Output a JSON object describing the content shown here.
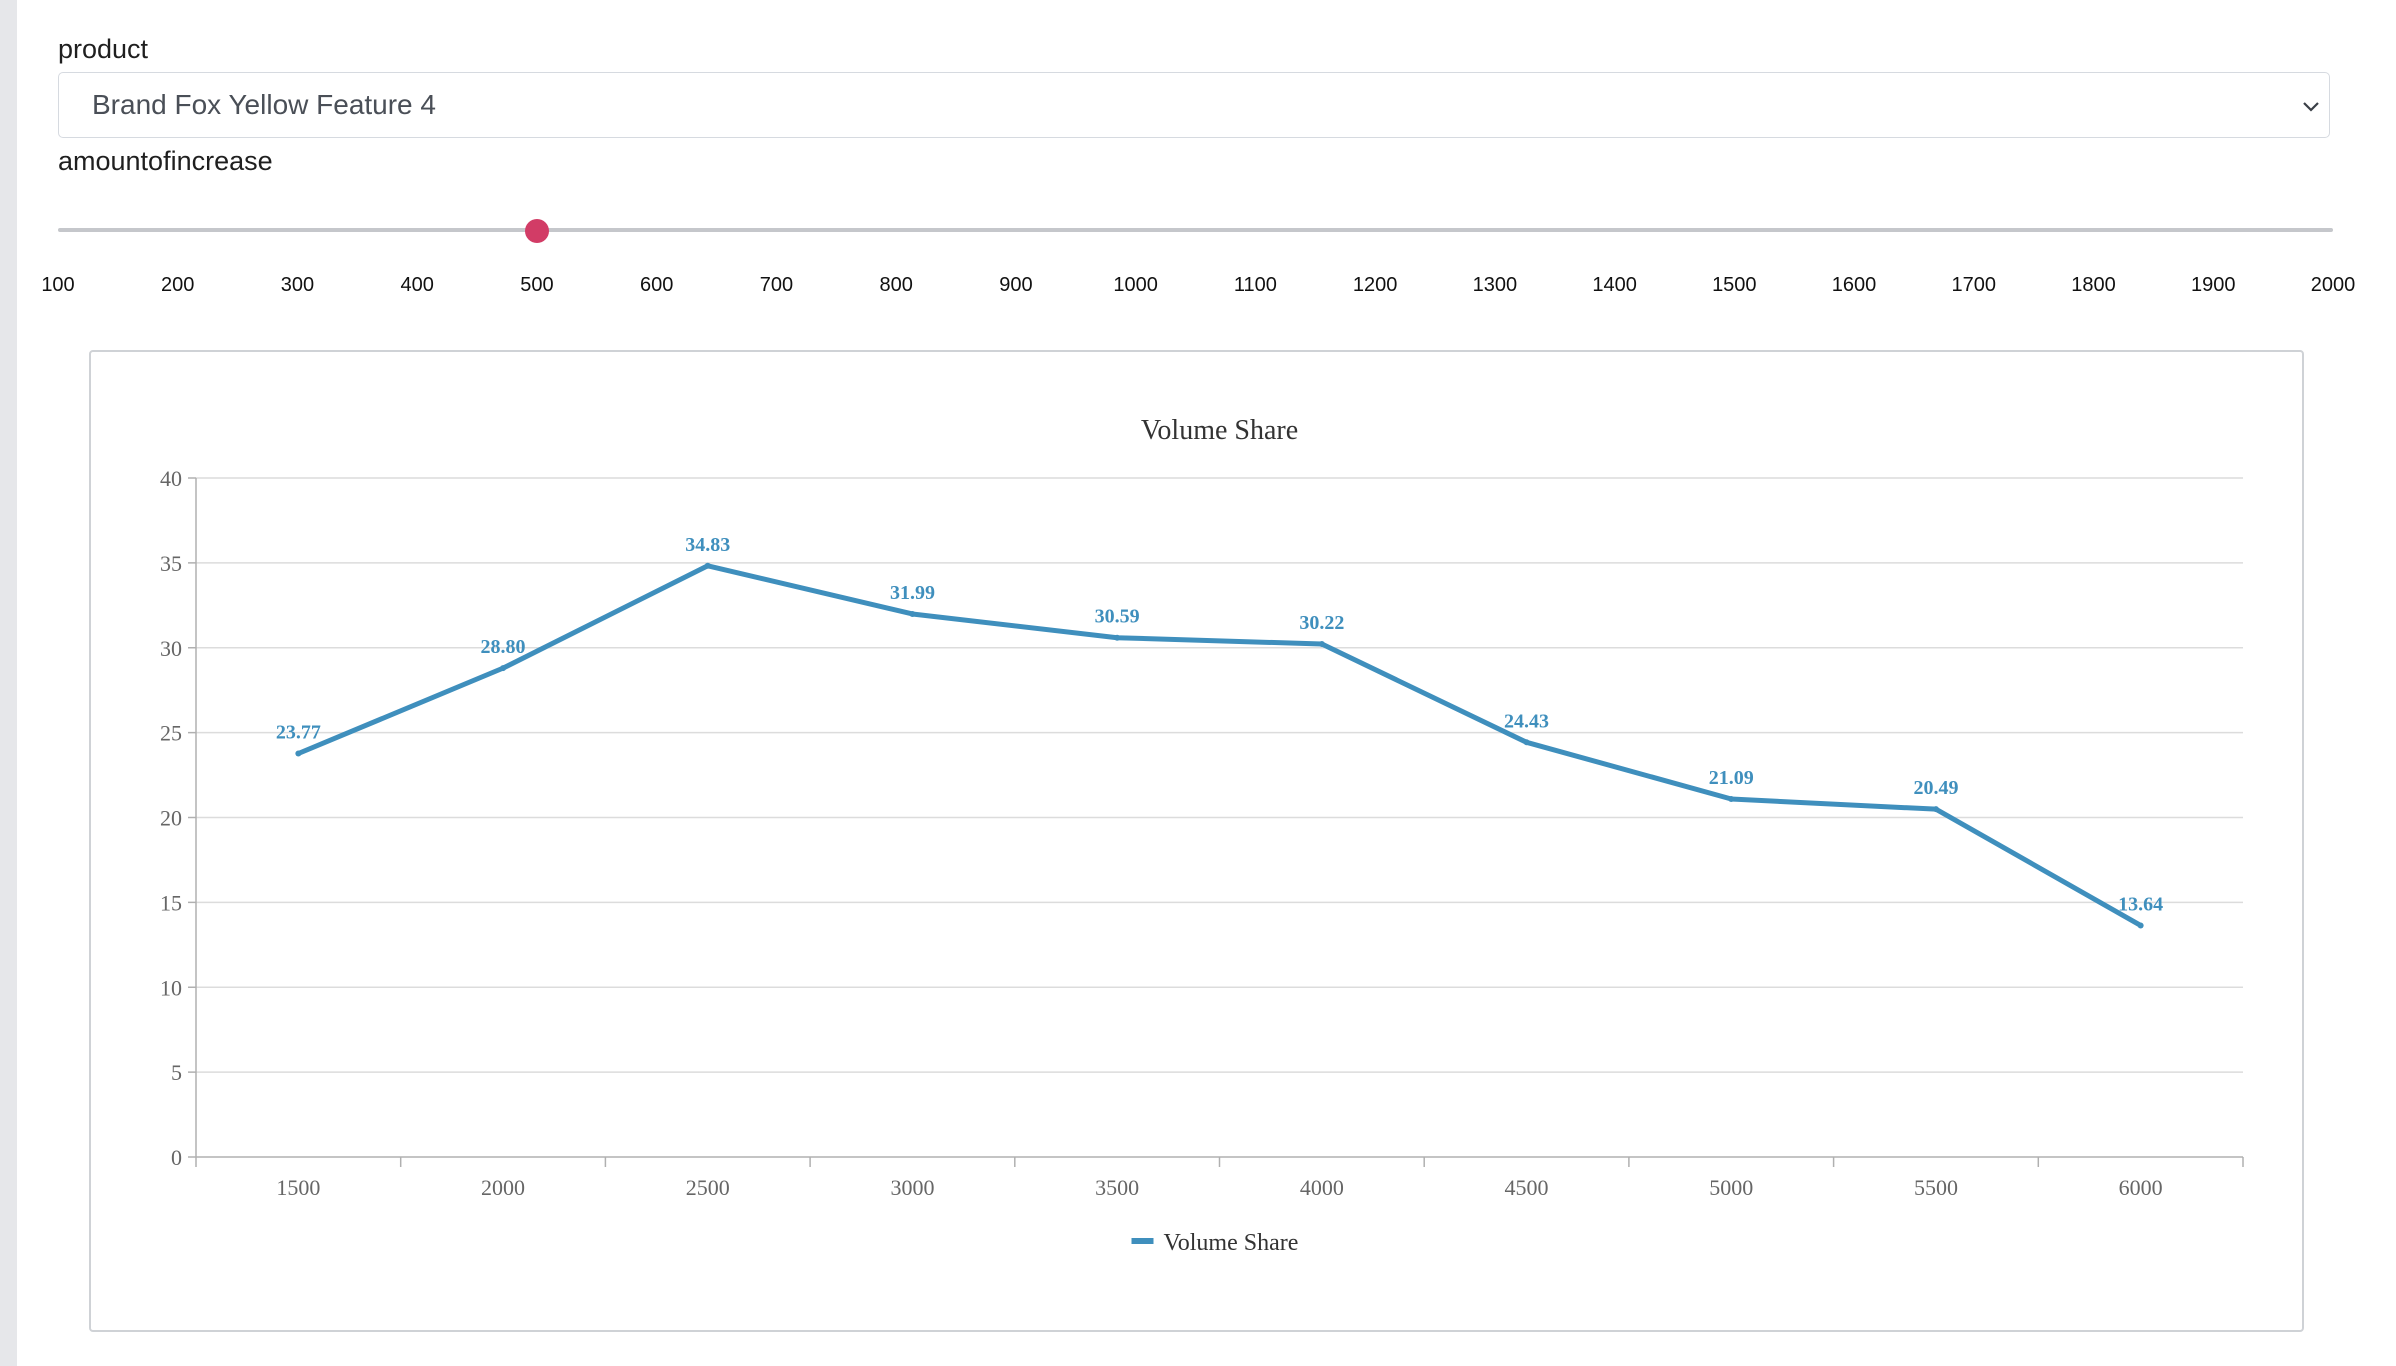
{
  "filters": {
    "product_label": "product",
    "product_value": "Brand Fox Yellow Feature 4",
    "amount_label": "amountofincrease",
    "slider": {
      "value": 500,
      "min": 100,
      "max": 2000,
      "ticks": [
        "100",
        "200",
        "300",
        "400",
        "500",
        "600",
        "700",
        "800",
        "900",
        "1000",
        "1100",
        "1200",
        "1300",
        "1400",
        "1500",
        "1600",
        "1700",
        "1800",
        "1900",
        "2000"
      ]
    }
  },
  "colors": {
    "line": "#3f8fbd",
    "slider_handle": "#d23c66",
    "grid": "#dcdcdc",
    "axis": "#b0b0b0"
  },
  "chart_data": {
    "type": "line",
    "title": "Volume Share",
    "x": [
      1500,
      2000,
      2500,
      3000,
      3500,
      4000,
      4500,
      5000,
      5500,
      6000
    ],
    "series": [
      {
        "name": "Volume Share",
        "values": [
          23.77,
          28.8,
          34.83,
          31.99,
          30.59,
          30.22,
          24.43,
          21.09,
          20.49,
          13.64
        ]
      }
    ],
    "data_labels": [
      "23.77",
      "28.80",
      "34.83",
      "31.99",
      "30.59",
      "30.22",
      "24.43",
      "21.09",
      "20.49",
      "13.64"
    ],
    "yticks": [
      "0",
      "5",
      "10",
      "15",
      "20",
      "25",
      "30",
      "35",
      "40"
    ],
    "ylim": [
      0,
      40
    ],
    "grid": true,
    "legend": "bottom-center"
  }
}
